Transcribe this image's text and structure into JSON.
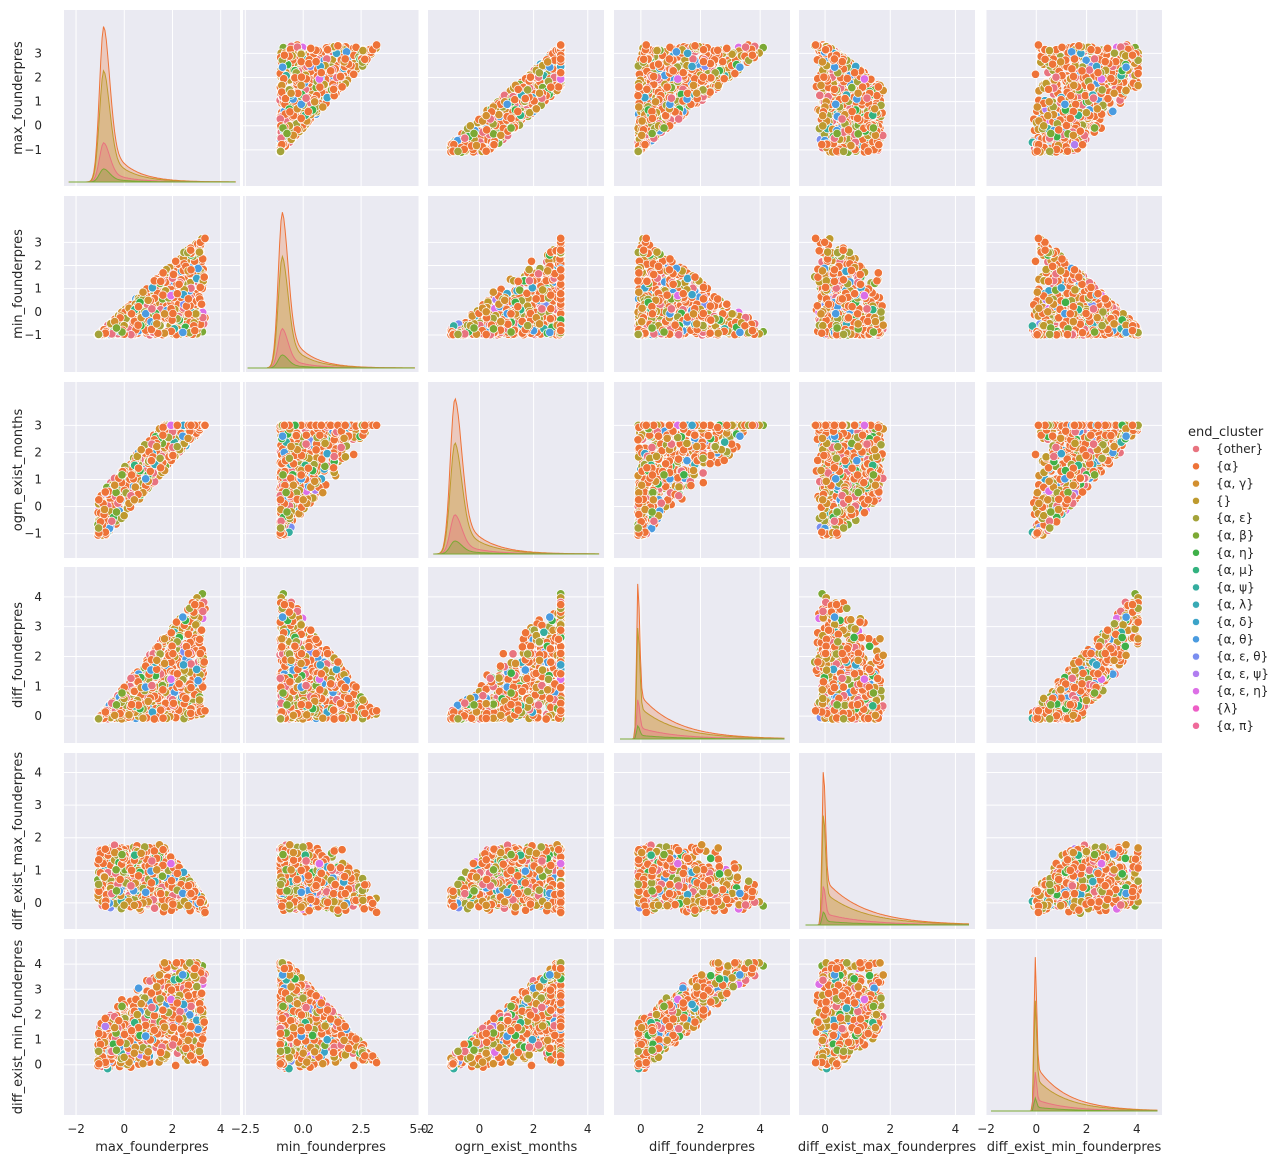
{
  "chart_data": {
    "type": "scatter",
    "title": "",
    "variables": [
      "max_founderpres",
      "min_founderpres",
      "ogrn_exist_months",
      "diff_founderpres",
      "diff_exist_max_founderpres",
      "diff_exist_min_founderpres"
    ],
    "diagonal": "kde",
    "grid": true,
    "axes": {
      "max_founderpres": {
        "lim": [
          -2.5,
          4.8
        ],
        "xticks": [
          -2,
          0,
          2,
          4
        ],
        "yticks": [
          -1,
          0,
          1,
          2,
          3
        ],
        "range": [
          -1.1,
          3.35
        ]
      },
      "min_founderpres": {
        "lim": [
          -2.6,
          5.0
        ],
        "xticks": [
          -2.5,
          0.0,
          2.5,
          5.0
        ],
        "yticks": [
          -1,
          0,
          1,
          2,
          3
        ],
        "range": [
          -1.0,
          3.55
        ]
      },
      "ogrn_exist_months": {
        "lim": [
          -1.9,
          4.6
        ],
        "xticks": [
          -2,
          0,
          2,
          4
        ],
        "yticks": [
          -1,
          0,
          1,
          2,
          3
        ],
        "range": [
          -1.05,
          3.0
        ]
      },
      "diff_founderpres": {
        "lim": [
          -0.9,
          5.0
        ],
        "xticks": [
          0,
          2,
          4
        ],
        "yticks": [
          0,
          1,
          2,
          3,
          4
        ],
        "range": [
          -0.15,
          4.4
        ]
      },
      "diff_exist_max_founderpres": {
        "lim": [
          -0.8,
          4.6
        ],
        "xticks": [
          0,
          2,
          4
        ],
        "yticks": [
          0,
          1,
          2,
          3,
          4
        ],
        "range": [
          -0.6,
          4.05
        ]
      },
      "diff_exist_min_founderpres": {
        "lim": [
          -2.0,
          5.0
        ],
        "xticks": [
          -2,
          0,
          2,
          4
        ],
        "yticks": [
          0,
          1,
          2,
          3,
          4
        ],
        "range": [
          -0.55,
          4.05
        ]
      }
    },
    "kde_peaks": {
      "max_founderpres": -0.85,
      "min_founderpres": -0.9,
      "ogrn_exist_months": -0.9,
      "diff_founderpres": -0.1,
      "diff_exist_max_founderpres": -0.05,
      "diff_exist_min_founderpres": -0.05
    },
    "legend": {
      "title": "end_cluster",
      "placement": "right",
      "entries": [
        {
          "label": "{other}",
          "color": "#e8737f"
        },
        {
          "label": "{α}",
          "color": "#ee7338"
        },
        {
          "label": "{α, γ}",
          "color": "#d28f30"
        },
        {
          "label": "{}",
          "color": "#be9a2e"
        },
        {
          "label": "{α, ε}",
          "color": "#a4a33a"
        },
        {
          "label": "{α, β}",
          "color": "#7ca935"
        },
        {
          "label": "{α, η}",
          "color": "#3fb048"
        },
        {
          "label": "{α, μ}",
          "color": "#32b27f"
        },
        {
          "label": "{α, ψ}",
          "color": "#35ad9f"
        },
        {
          "label": "{α, λ}",
          "color": "#38aab5"
        },
        {
          "label": "{α, δ}",
          "color": "#3ba3c8"
        },
        {
          "label": "{α, θ}",
          "color": "#4a9be0"
        },
        {
          "label": "{α, ε, θ}",
          "color": "#7a8ef0"
        },
        {
          "label": "{α, ε, ψ}",
          "color": "#b07df0"
        },
        {
          "label": "{α, ε, η}",
          "color": "#dc6fe6"
        },
        {
          "label": "{λ}",
          "color": "#ee5ec6"
        },
        {
          "label": "{α, π}",
          "color": "#ef6a9a"
        }
      ]
    }
  }
}
